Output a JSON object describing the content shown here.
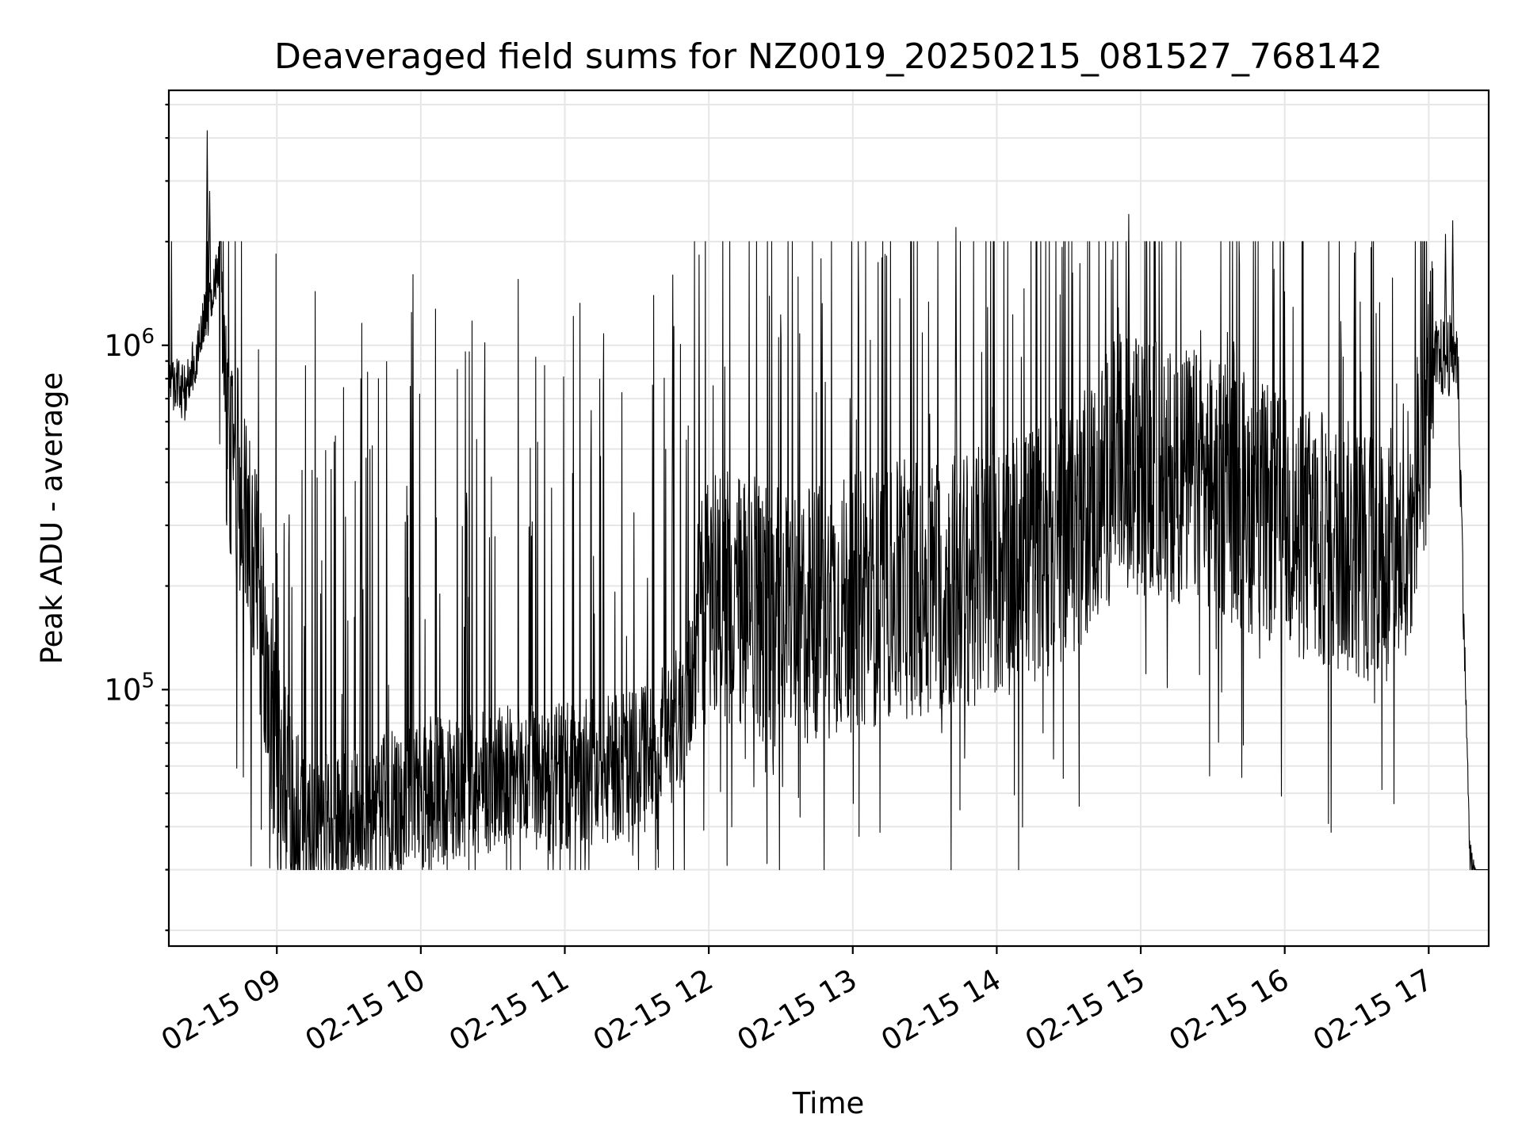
{
  "chart_data": {
    "type": "line",
    "title": "Deaveraged field sums for NZ0019_20250215_081527_768142",
    "xlabel": "Time",
    "ylabel": "Peak ADU - average",
    "y_scale": "log",
    "ylim": [
      18000,
      5500000
    ],
    "xlim": [
      "2025-02-15 08:15",
      "2025-02-15 17:25"
    ],
    "grid": true,
    "legend": "none",
    "line_color": "#000000",
    "x_ticks": [
      {
        "value": "2025-02-15 09:00",
        "label": "02-15 09"
      },
      {
        "value": "2025-02-15 10:00",
        "label": "02-15 10"
      },
      {
        "value": "2025-02-15 11:00",
        "label": "02-15 11"
      },
      {
        "value": "2025-02-15 12:00",
        "label": "02-15 12"
      },
      {
        "value": "2025-02-15 13:00",
        "label": "02-15 13"
      },
      {
        "value": "2025-02-15 14:00",
        "label": "02-15 14"
      },
      {
        "value": "2025-02-15 15:00",
        "label": "02-15 15"
      },
      {
        "value": "2025-02-15 16:00",
        "label": "02-15 16"
      },
      {
        "value": "2025-02-15 17:00",
        "label": "02-15 17"
      }
    ],
    "y_major_ticks": [
      {
        "value": 100000,
        "base": "10",
        "exp": "5"
      },
      {
        "value": 1000000,
        "base": "10",
        "exp": "6"
      }
    ],
    "y_minor_ticks": [
      20000,
      30000,
      40000,
      50000,
      60000,
      70000,
      80000,
      90000,
      200000,
      300000,
      400000,
      500000,
      600000,
      700000,
      800000,
      900000,
      2000000,
      3000000,
      4000000,
      5000000
    ],
    "series": [
      {
        "points": [
          [
            "2025-02-15 08:15",
            800000
          ],
          [
            "2025-02-15 08:22",
            720000
          ],
          [
            "2025-02-15 08:30",
            1200000
          ],
          [
            "2025-02-15 08:33",
            1300000
          ],
          [
            "2025-02-15 08:36",
            1800000
          ],
          [
            "2025-02-15 08:40",
            450000
          ],
          [
            "2025-02-15 08:45",
            400000
          ],
          [
            "2025-02-15 08:50",
            250000
          ],
          [
            "2025-02-15 08:55",
            130000
          ],
          [
            "2025-02-15 09:00",
            60000
          ],
          [
            "2025-02-15 09:10",
            38000
          ],
          [
            "2025-02-15 09:30",
            40000
          ],
          [
            "2025-02-15 10:00",
            50000
          ],
          [
            "2025-02-15 10:30",
            55000
          ],
          [
            "2025-02-15 11:00",
            55000
          ],
          [
            "2025-02-15 11:30",
            60000
          ],
          [
            "2025-02-15 11:50",
            85000
          ],
          [
            "2025-02-15 12:00",
            200000
          ],
          [
            "2025-02-15 12:30",
            160000
          ],
          [
            "2025-02-15 13:00",
            180000
          ],
          [
            "2025-02-15 13:30",
            200000
          ],
          [
            "2025-02-15 14:00",
            220000
          ],
          [
            "2025-02-15 14:30",
            280000
          ],
          [
            "2025-02-15 14:50",
            450000
          ],
          [
            "2025-02-15 15:00",
            450000
          ],
          [
            "2025-02-15 15:30",
            400000
          ],
          [
            "2025-02-15 16:00",
            300000
          ],
          [
            "2025-02-15 16:30",
            250000
          ],
          [
            "2025-02-15 16:50",
            250000
          ],
          [
            "2025-02-15 17:03",
            900000
          ],
          [
            "2025-02-15 17:12",
            950000
          ],
          [
            "2025-02-15 17:17",
            35000
          ],
          [
            "2025-02-15 17:20",
            26000
          ],
          [
            "2025-02-15 17:25",
            28000
          ]
        ],
        "spikes": [
          [
            "2025-02-15 08:31",
            4200000
          ],
          [
            "2025-02-15 08:32",
            2800000
          ],
          [
            "2025-02-15 09:35",
            800000
          ],
          [
            "2025-02-15 11:45",
            1600000
          ],
          [
            "2025-02-15 13:43",
            2200000
          ],
          [
            "2025-02-15 14:55",
            2400000
          ],
          [
            "2025-02-15 17:07",
            2100000
          ],
          [
            "2025-02-15 17:10",
            2300000
          ]
        ]
      }
    ]
  }
}
